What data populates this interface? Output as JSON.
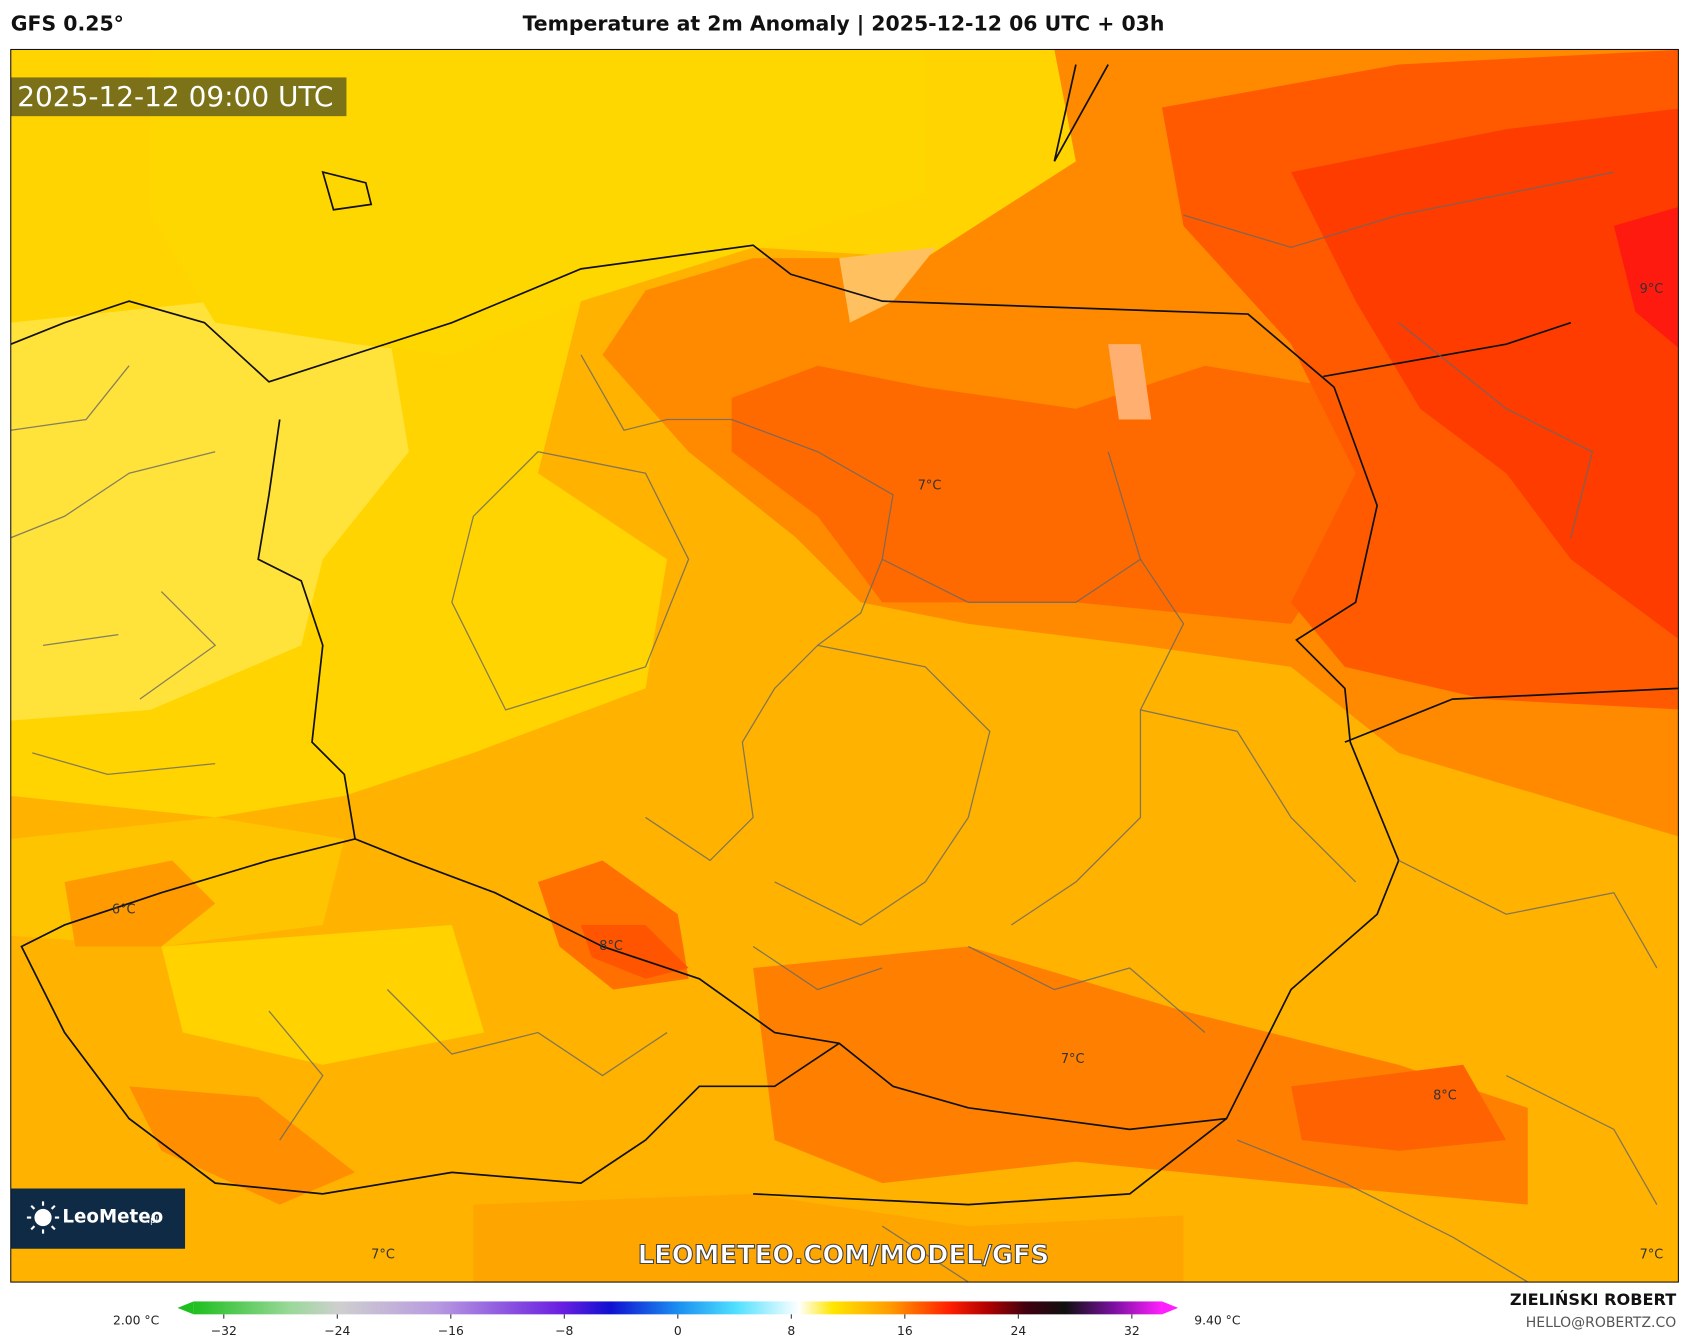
{
  "header": {
    "model": "GFS 0.25°",
    "title": "Temperature at 2m Anomaly | 2025-12-12 06 UTC + 03h"
  },
  "map": {
    "timestamp": "2025-12-12 09:00 UTC",
    "logo": "LeoMeteo",
    "logo_suffix": ".pl",
    "watermark": "LEOMETEO.COM/MODEL/GFS",
    "labels": [
      "9°C",
      "7°C",
      "6°C",
      "8°C",
      "7°C",
      "8°C",
      "7°C",
      "7°C"
    ]
  },
  "colorbar": {
    "min_label": "2.00 °C",
    "max_label": "9.40 °C",
    "ticks": [
      "−32",
      "−24",
      "−16",
      "−8",
      "0",
      "8",
      "16",
      "24",
      "32"
    ]
  },
  "credits": {
    "author": "ZIELIŃSKI ROBERT",
    "email": "HELLO@ROBERTZ.CO"
  }
}
